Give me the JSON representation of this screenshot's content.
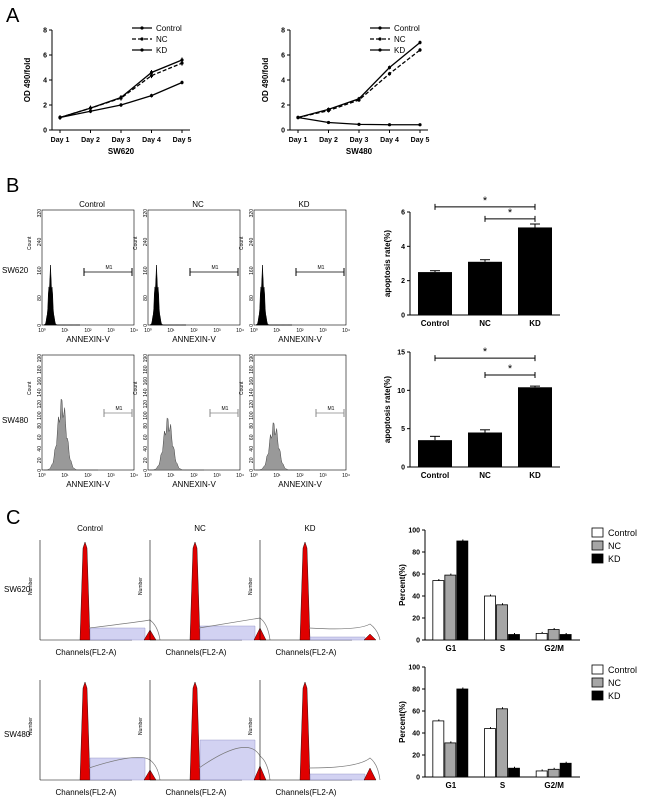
{
  "panels": {
    "a": "A",
    "b": "B",
    "c": "C"
  },
  "chart_data": [
    {
      "type": "line",
      "id": "growth_sw620",
      "title": "",
      "xlabel": "SW620",
      "ylabel": "OD 490/fold",
      "categories": [
        "Day 1",
        "Day 2",
        "Day 3",
        "Day 4",
        "Day 5"
      ],
      "yticks": [
        "0",
        "2",
        "4",
        "6",
        "8"
      ],
      "ylim": [
        0,
        8
      ],
      "legend_position": "top-right",
      "series": [
        {
          "name": "Control",
          "values": [
            1.0,
            1.75,
            2.6,
            4.6,
            5.6
          ],
          "dash": "solid",
          "err": 0.2
        },
        {
          "name": "NC",
          "values": [
            1.0,
            1.75,
            2.55,
            4.35,
            5.35
          ],
          "dash": "dashed",
          "err": 0.2
        },
        {
          "name": "KD",
          "values": [
            1.0,
            1.5,
            2.0,
            2.75,
            3.8
          ],
          "dash": "solid",
          "err": 0.15
        }
      ]
    },
    {
      "type": "line",
      "id": "growth_sw480",
      "title": "",
      "xlabel": "SW480",
      "ylabel": "OD 490/fold",
      "categories": [
        "Day 1",
        "Day 2",
        "Day 3",
        "Day 4",
        "Day 5"
      ],
      "yticks": [
        "0",
        "2",
        "4",
        "6",
        "8"
      ],
      "ylim": [
        0,
        8
      ],
      "legend_position": "top-right",
      "series": [
        {
          "name": "Control",
          "values": [
            1.0,
            1.65,
            2.5,
            5.0,
            7.0
          ],
          "dash": "solid",
          "err": 0.15
        },
        {
          "name": "NC",
          "values": [
            1.0,
            1.55,
            2.4,
            4.5,
            6.4
          ],
          "dash": "dashed",
          "err": 0.15
        },
        {
          "name": "KD",
          "values": [
            1.0,
            0.6,
            0.45,
            0.42,
            0.42
          ],
          "dash": "solid",
          "err": 0.05
        }
      ]
    },
    {
      "type": "bar",
      "id": "apoptosis_sw620",
      "ylabel": "apoptosis rate(%)",
      "categories": [
        "Control",
        "NC",
        "KD"
      ],
      "values": [
        2.5,
        3.1,
        5.1
      ],
      "errors": [
        0.08,
        0.12,
        0.2
      ],
      "yticks": [
        "0",
        "2",
        "4",
        "6"
      ],
      "ylim": [
        0,
        6
      ],
      "significance": [
        {
          "from": 0,
          "to": 2,
          "label": "*",
          "y": 6.3
        },
        {
          "from": 1,
          "to": 2,
          "label": "*",
          "y": 5.6
        }
      ]
    },
    {
      "type": "bar",
      "id": "apoptosis_sw480",
      "ylabel": "apoptosis rate(%)",
      "categories": [
        "Control",
        "NC",
        "KD"
      ],
      "values": [
        3.5,
        4.5,
        10.4
      ],
      "errors": [
        0.5,
        0.35,
        0.15
      ],
      "yticks": [
        "0",
        "5",
        "10",
        "15"
      ],
      "ylim": [
        0,
        15
      ],
      "significance": [
        {
          "from": 0,
          "to": 2,
          "label": "*",
          "y": 14.2
        },
        {
          "from": 1,
          "to": 2,
          "label": "*",
          "y": 12.0
        }
      ]
    },
    {
      "type": "bar",
      "id": "cellcycle_sw620",
      "ylabel": "Percent(%)",
      "categories": [
        "G1",
        "S",
        "G2/M"
      ],
      "yticks": [
        "0",
        "20",
        "40",
        "60",
        "80",
        "100"
      ],
      "ylim": [
        0,
        100
      ],
      "legend_position": "right",
      "series": [
        {
          "name": "Control",
          "values": [
            54,
            40,
            6
          ],
          "color": "#ffffff"
        },
        {
          "name": "NC",
          "values": [
            59,
            32,
            9.5
          ],
          "color": "#a6a6a6"
        },
        {
          "name": "KD",
          "values": [
            90,
            5,
            5
          ],
          "color": "#000000"
        }
      ]
    },
    {
      "type": "bar",
      "id": "cellcycle_sw480",
      "ylabel": "Percent(%)",
      "categories": [
        "G1",
        "S",
        "G2/M"
      ],
      "yticks": [
        "0",
        "20",
        "40",
        "60",
        "80",
        "100"
      ],
      "ylim": [
        0,
        100
      ],
      "legend_position": "right",
      "series": [
        {
          "name": "Control",
          "values": [
            51,
            44,
            5.5
          ],
          "color": "#ffffff"
        },
        {
          "name": "NC",
          "values": [
            31,
            62,
            7
          ],
          "color": "#a6a6a6"
        },
        {
          "name": "KD",
          "values": [
            80,
            8,
            12.5
          ],
          "color": "#000000"
        }
      ]
    }
  ],
  "flow": {
    "column_titles": [
      "Control",
      "NC",
      "KD"
    ],
    "row_labels": [
      "SW620",
      "SW480"
    ],
    "xlabel": "ANNEXIN-V",
    "ylabel": "Count",
    "gate_label": "M1",
    "ticks_620": [
      "10⁰",
      "10¹",
      "10²",
      "10³",
      "10⁴"
    ],
    "yticks_620": [
      "0",
      "80",
      "160",
      "240",
      "320"
    ],
    "ticks_480": [
      "10⁰",
      "10¹",
      "10²",
      "10³",
      "10⁴"
    ],
    "yticks_480": [
      "0",
      "20",
      "40",
      "60",
      "80",
      "100",
      "120",
      "140",
      "160",
      "180",
      "190"
    ]
  },
  "cycle": {
    "column_titles": [
      "Control",
      "NC",
      "KD"
    ],
    "row_labels": [
      "SW620",
      "SW480"
    ],
    "xlabel": "Channels(FL2-A)",
    "ylabel": "Number"
  }
}
